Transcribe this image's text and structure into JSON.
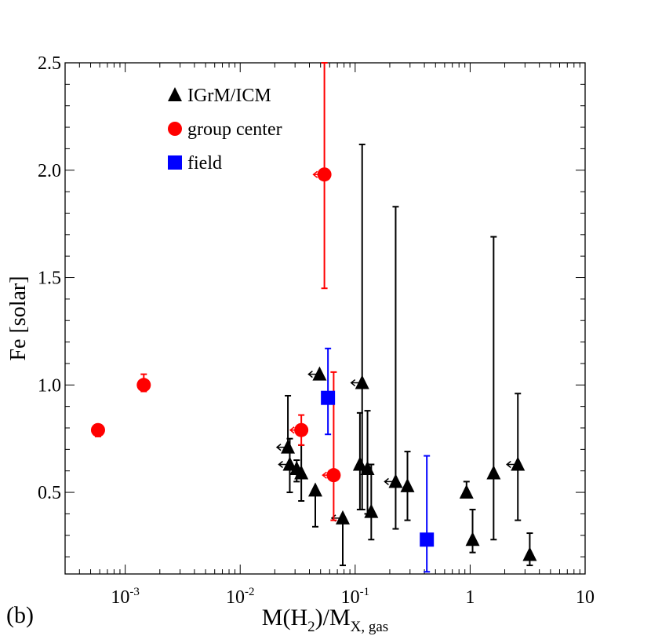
{
  "panel_label": "(b)",
  "colors": {
    "igrm": "#000000",
    "group_center": "#ff0000",
    "field": "#0000ff"
  },
  "chart_data": {
    "type": "scatter",
    "xscale": "log",
    "xlim": [
      0.0003,
      10
    ],
    "ylim": [
      0.12,
      2.5
    ],
    "xlabel": {
      "pre": "M(",
      "mid": "H",
      "sub1": "2",
      "post": ")/M",
      "sub2": "X, gas"
    },
    "ylabel": "Fe [solar]",
    "xticks": [
      {
        "value": 0.001,
        "base": "10",
        "exp": "-3"
      },
      {
        "value": 0.01,
        "base": "10",
        "exp": "-2"
      },
      {
        "value": 0.1,
        "base": "10",
        "exp": "-1"
      },
      {
        "value": 1,
        "base": "1",
        "exp": ""
      },
      {
        "value": 10,
        "base": "10",
        "exp": ""
      }
    ],
    "yticks": [
      {
        "value": 0.5,
        "label": "0.5"
      },
      {
        "value": 1.0,
        "label": "1.0"
      },
      {
        "value": 1.5,
        "label": "1.5"
      },
      {
        "value": 2.0,
        "label": "2.0"
      },
      {
        "value": 2.5,
        "label": "2.5"
      }
    ],
    "legend": [
      {
        "label": "IGrM/ICM",
        "marker": "triangle",
        "color": "#000000"
      },
      {
        "label": "group center",
        "marker": "circle",
        "color": "#ff0000"
      },
      {
        "label": "field",
        "marker": "square",
        "color": "#0000ff"
      }
    ],
    "series": [
      {
        "name": "IGrM/ICM",
        "marker": "triangle",
        "color": "#000000",
        "points": [
          {
            "x": 0.026,
            "y": 0.71,
            "ylo": 0.71,
            "yhi": 0.95,
            "upper_limit": true
          },
          {
            "x": 0.027,
            "y": 0.63,
            "ylo": 0.5,
            "yhi": 0.75,
            "upper_limit": true
          },
          {
            "x": 0.031,
            "y": 0.61,
            "ylo": 0.55,
            "yhi": 0.65,
            "upper_limit": false
          },
          {
            "x": 0.034,
            "y": 0.59,
            "ylo": 0.46,
            "yhi": 0.72,
            "upper_limit": false
          },
          {
            "x": 0.045,
            "y": 0.51,
            "ylo": 0.34,
            "yhi": 0.51,
            "upper_limit": false
          },
          {
            "x": 0.049,
            "y": 1.05,
            "ylo": 1.05,
            "yhi": 1.05,
            "upper_limit": true
          },
          {
            "x": 0.078,
            "y": 0.38,
            "ylo": 0.16,
            "yhi": 0.38,
            "upper_limit": true
          },
          {
            "x": 0.11,
            "y": 0.63,
            "ylo": 0.42,
            "yhi": 0.87,
            "upper_limit": false
          },
          {
            "x": 0.115,
            "y": 1.01,
            "ylo": 0.42,
            "yhi": 2.12,
            "upper_limit": true
          },
          {
            "x": 0.128,
            "y": 0.61,
            "ylo": 0.4,
            "yhi": 0.88,
            "upper_limit": false
          },
          {
            "x": 0.138,
            "y": 0.41,
            "ylo": 0.28,
            "yhi": 0.63,
            "upper_limit": false
          },
          {
            "x": 0.225,
            "y": 0.55,
            "ylo": 0.33,
            "yhi": 1.83,
            "upper_limit": true
          },
          {
            "x": 0.285,
            "y": 0.53,
            "ylo": 0.37,
            "yhi": 0.69,
            "upper_limit": false
          },
          {
            "x": 0.93,
            "y": 0.5,
            "ylo": 0.48,
            "yhi": 0.55,
            "upper_limit": false
          },
          {
            "x": 1.05,
            "y": 0.28,
            "ylo": 0.22,
            "yhi": 0.42,
            "upper_limit": false
          },
          {
            "x": 1.6,
            "y": 0.59,
            "ylo": 0.28,
            "yhi": 1.69,
            "upper_limit": false
          },
          {
            "x": 2.6,
            "y": 0.63,
            "ylo": 0.37,
            "yhi": 0.96,
            "upper_limit": true
          },
          {
            "x": 3.3,
            "y": 0.21,
            "ylo": 0.16,
            "yhi": 0.31,
            "upper_limit": false
          }
        ]
      },
      {
        "name": "group center",
        "marker": "circle",
        "color": "#ff0000",
        "points": [
          {
            "x": 0.00058,
            "y": 0.79,
            "ylo": 0.76,
            "yhi": 0.81,
            "upper_limit": false
          },
          {
            "x": 0.00145,
            "y": 1.0,
            "ylo": 0.97,
            "yhi": 1.05,
            "upper_limit": false
          },
          {
            "x": 0.034,
            "y": 0.79,
            "ylo": 0.72,
            "yhi": 0.86,
            "upper_limit": true
          },
          {
            "x": 0.054,
            "y": 1.98,
            "ylo": 1.45,
            "yhi": 2.5,
            "upper_limit": true
          },
          {
            "x": 0.065,
            "y": 0.58,
            "ylo": 0.37,
            "yhi": 1.06,
            "upper_limit": true
          }
        ]
      },
      {
        "name": "field",
        "marker": "square",
        "color": "#0000ff",
        "points": [
          {
            "x": 0.058,
            "y": 0.94,
            "ylo": 0.77,
            "yhi": 1.17,
            "upper_limit": false
          },
          {
            "x": 0.42,
            "y": 0.28,
            "ylo": 0.13,
            "yhi": 0.67,
            "upper_limit": false
          }
        ]
      }
    ]
  }
}
